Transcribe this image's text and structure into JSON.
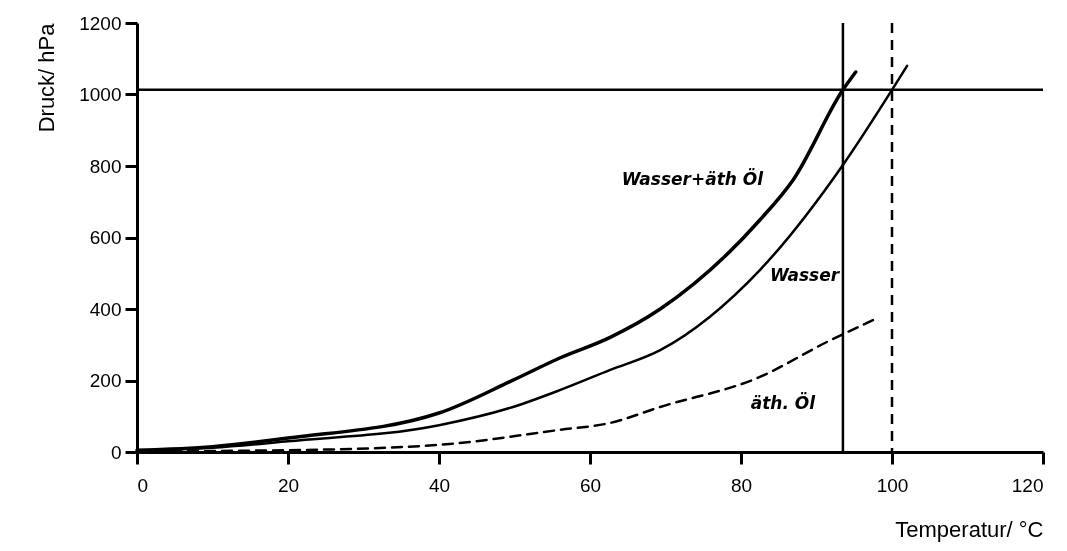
{
  "chart_data": {
    "type": "line",
    "xlabel": "Temperatur/ °C",
    "ylabel": "Druck/ hPa",
    "xlim": [
      0,
      120
    ],
    "xticks": [
      0,
      20,
      40,
      60,
      80,
      100,
      120
    ],
    "ylim": [
      0,
      1200
    ],
    "yticks": [
      0,
      200,
      400,
      600,
      800,
      1000,
      1200
    ],
    "grid": false,
    "series": [
      {
        "name": "Wasser+äth Öl",
        "color": "#000000",
        "line_style": "solid",
        "x": [
          0,
          10,
          20,
          40,
          49.8,
          56,
          62.6,
          69.3,
          82.5,
          86.9,
          93.5,
          95.2
        ],
        "values": [
          5,
          15,
          39,
          109,
          201,
          263,
          320,
          400,
          649,
          761,
          1013,
          1063
        ]
      },
      {
        "name": "Wasser",
        "color": "#000000",
        "line_style": "solid",
        "x": [
          0,
          10,
          20,
          40,
          49.8,
          56,
          62.6,
          69.3,
          82.5,
          93.5,
          100,
          102
        ],
        "values": [
          5,
          12,
          30,
          75,
          126,
          173,
          229,
          285,
          509,
          803,
          1013,
          1080
        ]
      },
      {
        "name": "äth. Öl",
        "color": "#000000",
        "line_style": "dashed",
        "x": [
          0,
          20,
          40,
          56,
          62.6,
          69.3,
          82.5,
          91.4,
          97.5
        ],
        "values": [
          2,
          5,
          20,
          62,
          81,
          126,
          210,
          308,
          369
        ]
      }
    ],
    "ref_lines": [
      {
        "axis": "y",
        "value": 1013,
        "color": "#000000",
        "line_style": "solid"
      },
      {
        "axis": "x",
        "value": 93.5,
        "color": "#000000",
        "line_style": "solid"
      },
      {
        "axis": "x",
        "value": 100,
        "color": "#000000",
        "line_style": "dashed"
      }
    ]
  }
}
